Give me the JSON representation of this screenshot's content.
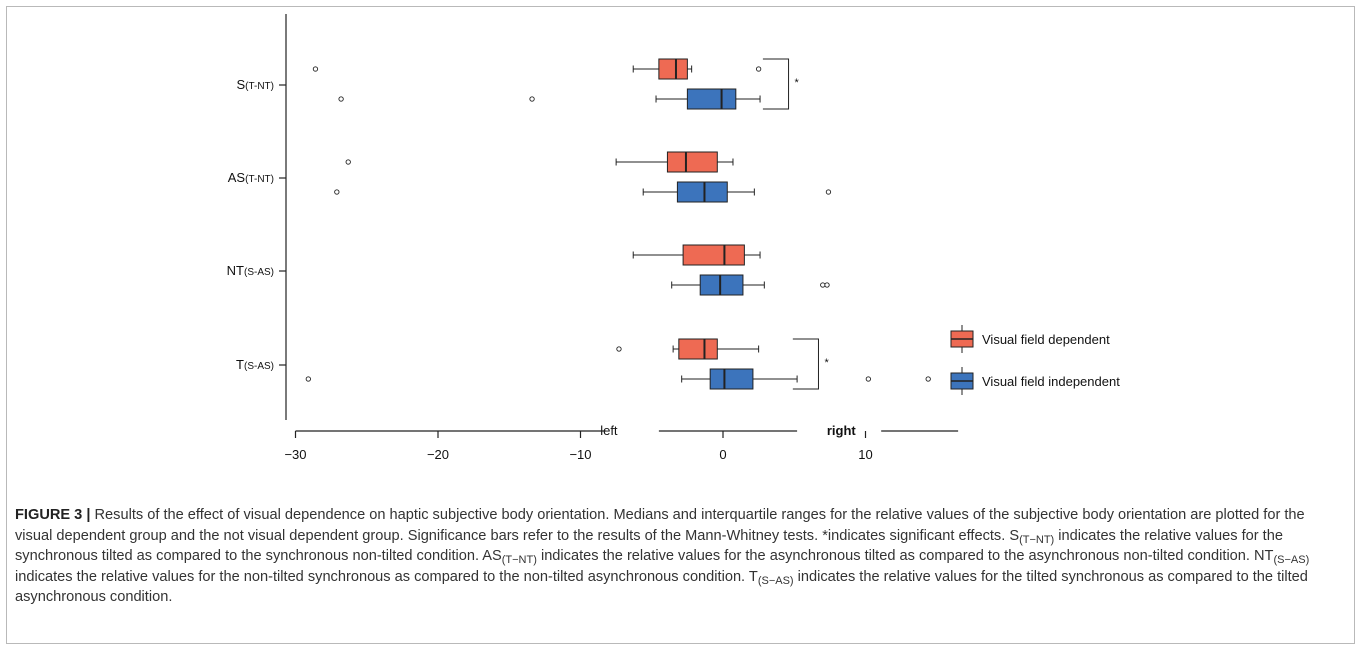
{
  "chart_data": {
    "type": "boxplot",
    "orientation": "horizontal",
    "xlim": [
      -31,
      17
    ],
    "xticks": [
      -30,
      -20,
      -10,
      0,
      10
    ],
    "xtick_labels": [
      "−30",
      "−20",
      "−10",
      "0",
      "10"
    ],
    "direction_labels": {
      "left": "left",
      "right": "right"
    },
    "categories": [
      {
        "id": "S",
        "main": "S",
        "sub": "(T-NT)"
      },
      {
        "id": "AS",
        "main": "AS",
        "sub": "(T-NT)"
      },
      {
        "id": "NT",
        "main": "NT",
        "sub": "(S-AS)"
      },
      {
        "id": "T",
        "main": "T",
        "sub": "(S-AS)"
      }
    ],
    "series": [
      {
        "name": "Visual field dependent",
        "color": "#ee6a53",
        "boxes": [
          {
            "category": "S",
            "whisker_low": -6.3,
            "q1": -4.5,
            "median": -3.3,
            "q3": -2.5,
            "whisker_high": -2.2,
            "outliers": [
              -28.6,
              2.5
            ]
          },
          {
            "category": "AS",
            "whisker_low": -7.5,
            "q1": -3.9,
            "median": -2.6,
            "q3": -0.4,
            "whisker_high": 0.7,
            "outliers": [
              -26.3
            ]
          },
          {
            "category": "NT",
            "whisker_low": -6.3,
            "q1": -2.8,
            "median": 0.1,
            "q3": 1.5,
            "whisker_high": 2.6,
            "outliers": []
          },
          {
            "category": "T",
            "whisker_low": -3.5,
            "q1": -3.1,
            "median": -1.3,
            "q3": -0.4,
            "whisker_high": 2.5,
            "outliers": [
              -7.3
            ]
          }
        ]
      },
      {
        "name": "Visual field independent",
        "color": "#3c74bc",
        "boxes": [
          {
            "category": "S",
            "whisker_low": -4.7,
            "q1": -2.5,
            "median": -0.1,
            "q3": 0.9,
            "whisker_high": 2.6,
            "outliers": [
              -26.8,
              -13.4
            ]
          },
          {
            "category": "AS",
            "whisker_low": -5.6,
            "q1": -3.2,
            "median": -1.3,
            "q3": 0.3,
            "whisker_high": 2.2,
            "outliers": [
              -27.1,
              7.4
            ]
          },
          {
            "category": "NT",
            "whisker_low": -3.6,
            "q1": -1.6,
            "median": -0.2,
            "q3": 1.4,
            "whisker_high": 2.9,
            "outliers": [
              7.0,
              7.3
            ]
          },
          {
            "category": "T",
            "whisker_low": -2.9,
            "q1": -0.9,
            "median": 0.1,
            "q3": 2.1,
            "whisker_high": 5.2,
            "outliers": [
              -29.1,
              10.2,
              14.4
            ]
          }
        ]
      }
    ],
    "significance": [
      {
        "category": "S",
        "label": "*"
      },
      {
        "category": "T",
        "label": "*"
      }
    ],
    "legend_position": "right"
  },
  "caption": {
    "figure_label": "FIGURE 3 |",
    "parts": [
      {
        "t": " Results of the effect of visual dependence on haptic subjective body orientation. Medians and interquartile ranges for the relative values of the subjective body orientation are plotted for the visual dependent group and the not visual dependent group. Significance bars refer to the results of the Mann-Whitney tests. *indicates significant effects. S"
      },
      {
        "t": "(T−NT)",
        "sub": true
      },
      {
        "t": " indicates the relative values for the synchronous tilted as compared to the synchronous non-tilted condition. AS"
      },
      {
        "t": "(T−NT)",
        "sub": true
      },
      {
        "t": " indicates the relative values for the asynchronous tilted as compared to the asynchronous non-tilted condition. NT"
      },
      {
        "t": "(S−AS)",
        "sub": true
      },
      {
        "t": " indicates the relative values for the non-tilted synchronous as compared to the non-tilted asynchronous condition. T"
      },
      {
        "t": "(S−AS)",
        "sub": true
      },
      {
        "t": " indicates the relative values for the tilted synchronous as compared to the tilted asynchronous condition."
      }
    ]
  }
}
